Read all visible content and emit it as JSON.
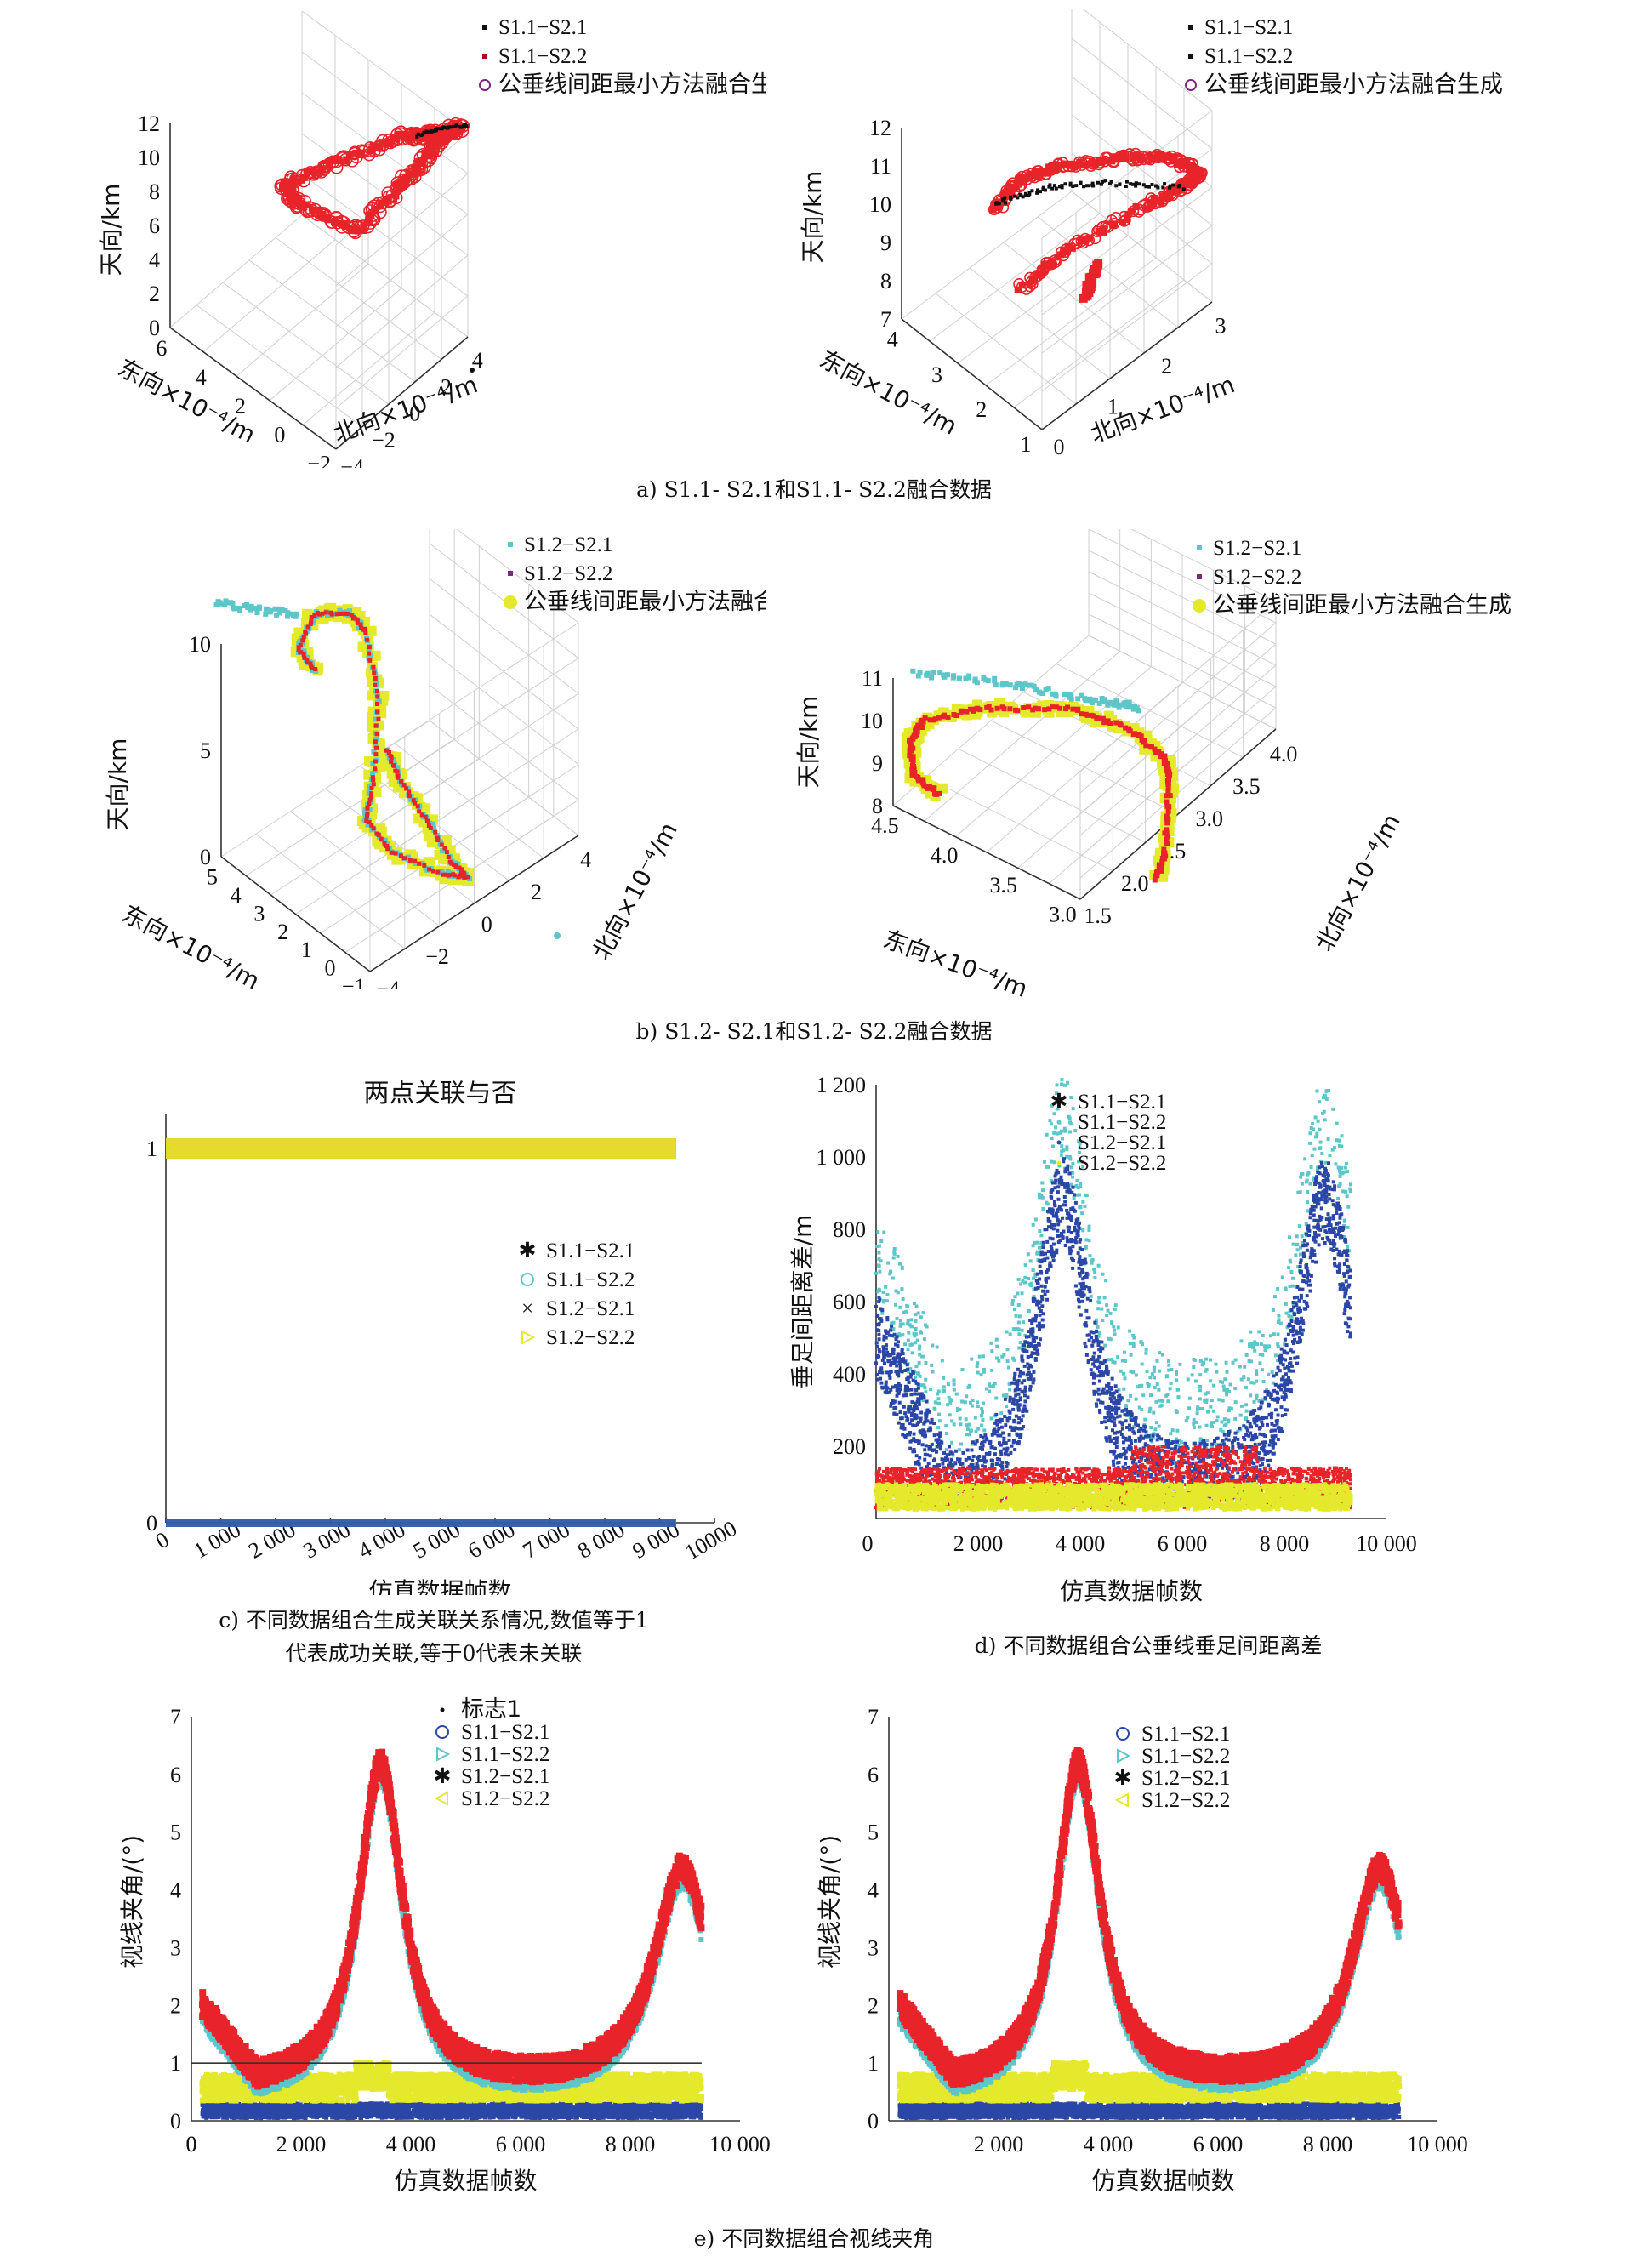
{
  "captions": {
    "a": "a) S1.1- S2.1和S1.1- S2.2融合数据",
    "b": "b) S1.2- S2.1和S1.2- S2.2融合数据",
    "c1": "c) 不同数据组合生成关联关系情况,数值等于1",
    "c2": "代表成功关联,等于0代表未关联",
    "d": "d) 不同数据组合公垂线垂足间距离差",
    "e": "e) 不同数据组合视线夹角"
  },
  "colors": {
    "red": "#e8232a",
    "cyan": "#5cc6c9",
    "blue": "#2a46a6",
    "yellow": "#e4e92b",
    "black": "#111111",
    "purple": "#7a2a7a",
    "darkred": "#a0121a"
  },
  "chart_data": [
    {
      "id": "a-left",
      "type": "scatter3d",
      "legend": [
        "S1.1−S2.1",
        "S1.1−S2.2",
        "公垂线间距最小方法融合生成"
      ],
      "zlabel": "天向/km",
      "xlabel": "东向×10⁻⁴/m",
      "ylabel": "北向×10⁻⁴/m",
      "zticks": [
        "0",
        "2",
        "4",
        "6",
        "8",
        "10",
        "12"
      ],
      "xticks": [
        "6",
        "4",
        "2",
        "0",
        "−2"
      ],
      "yticks": [
        "−4",
        "−2",
        "0",
        "2",
        "4"
      ]
    },
    {
      "id": "a-right",
      "type": "scatter3d",
      "legend": [
        "S1.1−S2.1",
        "S1.1−S2.2",
        "公垂线间距最小方法融合生成"
      ],
      "zlabel": "天向/km",
      "xlabel": "东向×10⁻⁴/m",
      "ylabel": "北向×10⁻⁴/m",
      "zticks": [
        "7",
        "8",
        "9",
        "10",
        "11",
        "12"
      ],
      "xticks": [
        "4",
        "3",
        "2",
        "1"
      ],
      "yticks": [
        "0",
        "1",
        "2",
        "3"
      ]
    },
    {
      "id": "b-left",
      "type": "scatter3d",
      "legend": [
        "S1.2−S2.1",
        "S1.2−S2.2",
        "公垂线间距最小方法融合生成"
      ],
      "zlabel": "天向/km",
      "xlabel": "东向×10⁻⁴/m",
      "ylabel": "北向×10⁻⁴/m",
      "zticks": [
        "0",
        "5",
        "10"
      ],
      "xticks": [
        "5",
        "4",
        "3",
        "2",
        "1",
        "0",
        "−1"
      ],
      "yticks": [
        "−4",
        "−2",
        "0",
        "2",
        "4"
      ]
    },
    {
      "id": "b-right",
      "type": "scatter3d",
      "legend": [
        "S1.2−S2.1",
        "S1.2−S2.2",
        "公垂线间距最小方法融合生成"
      ],
      "zlabel": "天向/km",
      "xlabel": "东向×10⁻⁴/m",
      "ylabel": "北向×10⁻⁴/m",
      "zticks": [
        "8",
        "9",
        "10",
        "11"
      ],
      "xticks": [
        "4.5",
        "4.0",
        "3.5",
        "3.0"
      ],
      "yticks": [
        "1.5",
        "2.0",
        "2.5",
        "3.0",
        "3.5",
        "4.0"
      ]
    },
    {
      "id": "c",
      "type": "scatter",
      "title": "两点关联与否",
      "xlabel": "仿真数据帧数",
      "ylabel": "",
      "xlim": [
        0,
        10000
      ],
      "ylim": [
        0,
        1
      ],
      "xticks": [
        "0",
        "1 000",
        "2 000",
        "3 000",
        "4 000",
        "5 000",
        "6 000",
        "7 000",
        "8 000",
        "9 000",
        "10000"
      ],
      "yticks": [
        "0",
        "1"
      ],
      "series": [
        {
          "name": "S1.1−S2.1",
          "level": 1,
          "xrange": [
            0,
            9300
          ]
        },
        {
          "name": "S1.1−S2.2",
          "level": 0,
          "xrange": [
            0,
            9300
          ]
        },
        {
          "name": "S1.2−S2.1",
          "level": 0,
          "xrange": [
            0,
            9300
          ]
        },
        {
          "name": "S1.2−S2.2",
          "level": 1,
          "xrange": [
            0,
            9300
          ]
        }
      ]
    },
    {
      "id": "d",
      "type": "scatter",
      "xlabel": "仿真数据帧数",
      "ylabel": "垂足间距离差/m",
      "xlim": [
        0,
        10000
      ],
      "ylim": [
        0,
        1200
      ],
      "xticks": [
        "0",
        "2 000",
        "4 000",
        "6 000",
        "8 000",
        "10 000"
      ],
      "yticks": [
        "200",
        "400",
        "600",
        "800",
        "1 000",
        "1 200"
      ],
      "series": [
        {
          "name": "S1.1−S2.1",
          "band": "low-red"
        },
        {
          "name": "S1.1−S2.2",
          "band": "peaks-cyan"
        },
        {
          "name": "S1.2−S2.1",
          "band": "peaks-blue"
        },
        {
          "name": "S1.2−S2.2",
          "band": "low-yellow"
        }
      ]
    },
    {
      "id": "e-left",
      "type": "scatter",
      "xlabel": "仿真数据帧数",
      "ylabel": "视线夹角/(°)",
      "xlim": [
        0,
        10000
      ],
      "ylim": [
        0,
        7
      ],
      "xticks": [
        "0",
        "2 000",
        "4 000",
        "6 000",
        "8 000",
        "10 000"
      ],
      "yticks": [
        "0",
        "1",
        "2",
        "3",
        "4",
        "5",
        "6",
        "7"
      ],
      "series": [
        {
          "name": "标志1",
          "constant": 1
        },
        {
          "name": "S1.1−S2.1"
        },
        {
          "name": "S1.1−S2.2"
        },
        {
          "name": "S1.2−S2.1"
        },
        {
          "name": "S1.2−S2.2"
        }
      ]
    },
    {
      "id": "e-right",
      "type": "scatter",
      "xlabel": "仿真数据帧数",
      "ylabel": "视线夹角/(°)",
      "xlim": [
        0,
        10000
      ],
      "ylim": [
        0,
        7
      ],
      "xticks": [
        "2 000",
        "4 000",
        "6 000",
        "8 000",
        "10 000"
      ],
      "yticks": [
        "0",
        "1",
        "2",
        "3",
        "4",
        "5",
        "6",
        "7"
      ],
      "series": [
        {
          "name": "S1.1−S2.1"
        },
        {
          "name": "S1.1−S2.2"
        },
        {
          "name": "S1.2−S2.1"
        },
        {
          "name": "S1.2−S2.2"
        }
      ]
    }
  ]
}
